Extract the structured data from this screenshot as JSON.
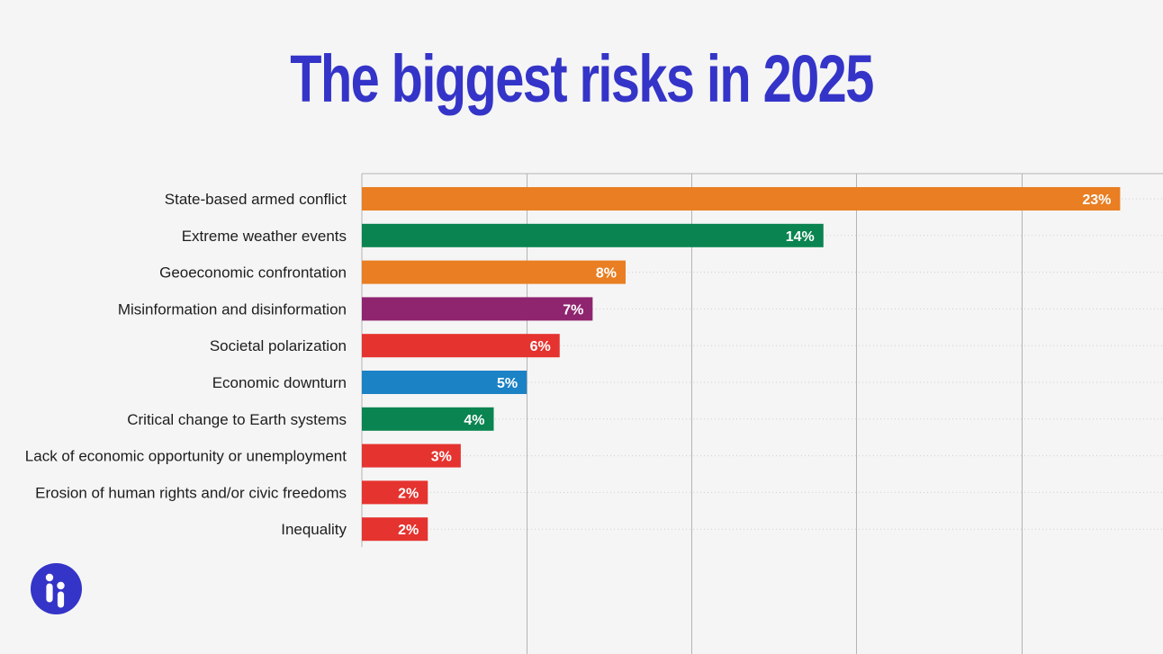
{
  "chart_data": {
    "type": "bar",
    "orientation": "horizontal",
    "title": "The biggest risks in 2025",
    "categories": [
      "State-based armed conflict",
      "Extreme weather events",
      "Geoeconomic confrontation",
      "Misinformation and disinformation",
      "Societal polarization",
      "Economic downturn",
      "Critical change to Earth systems",
      "Lack of economic opportunity or unemployment",
      "Erosion of human rights and/or civic freedoms",
      "Inequality"
    ],
    "values": [
      23,
      14,
      8,
      7,
      6,
      5,
      4,
      3,
      2,
      2
    ],
    "value_labels": [
      "23%",
      "14%",
      "8%",
      "7%",
      "6%",
      "5%",
      "4%",
      "3%",
      "2%",
      "2%"
    ],
    "colors": [
      "#e97e22",
      "#0a8450",
      "#e97e22",
      "#8f246f",
      "#e5332f",
      "#1b82c6",
      "#0a8450",
      "#e5332f",
      "#e5332f",
      "#e5332f"
    ],
    "xlim": [
      0,
      24.3
    ],
    "grid": true,
    "legend": "none"
  },
  "logo": {
    "icon": "ii-logo-icon",
    "color": "#3434c8"
  }
}
